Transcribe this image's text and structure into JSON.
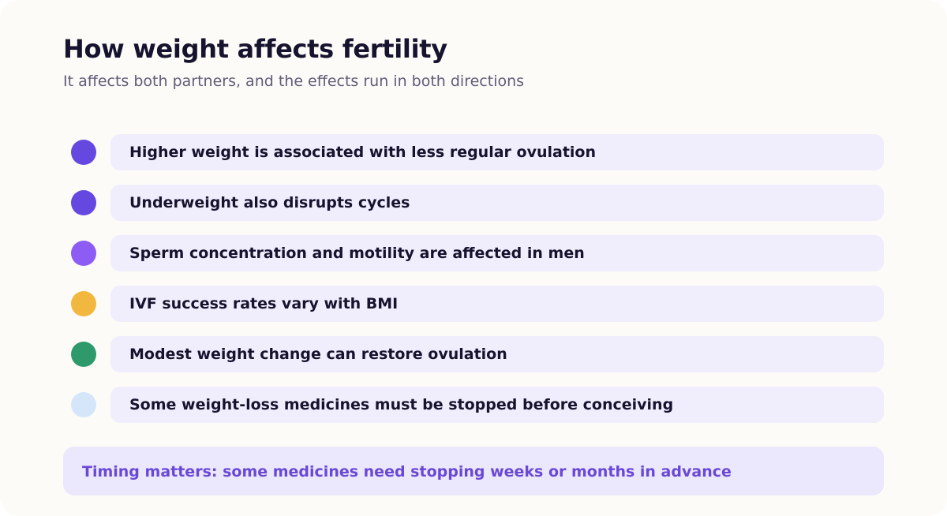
{
  "header": {
    "title": "How weight affects fertility",
    "subtitle": "It affects both partners, and the effects run in both directions"
  },
  "items": [
    {
      "label": "Higher weight is associated with less regular ovulation",
      "color": "#6548e0"
    },
    {
      "label": "Underweight also disrupts cycles",
      "color": "#6548e0"
    },
    {
      "label": "Sperm concentration and motility are affected in men",
      "color": "#8d5cf4"
    },
    {
      "label": "IVF success rates vary with BMI",
      "color": "#f2b73f"
    },
    {
      "label": "Modest weight change can restore ovulation",
      "color": "#2e9a6c"
    },
    {
      "label": "Some weight-loss medicines must be stopped before conceiving",
      "color": "#d5e6fb"
    }
  ],
  "callout": {
    "text": "Timing matters: some medicines need stopping weeks or months in advance"
  }
}
